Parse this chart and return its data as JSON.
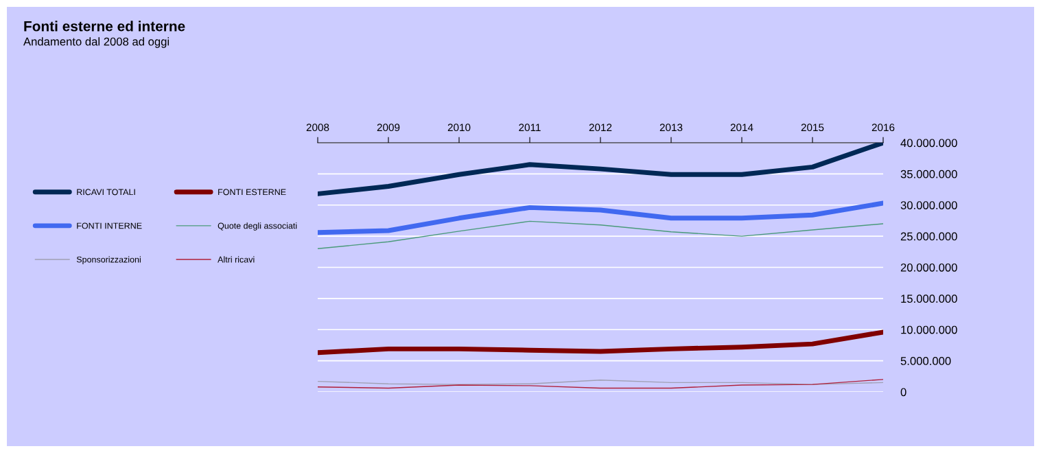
{
  "chart_data": {
    "type": "line",
    "title": "Fonti esterne ed interne",
    "subtitle": "Andamento dal 2008 ad oggi",
    "categories": [
      "2008",
      "2009",
      "2010",
      "2011",
      "2012",
      "2013",
      "2014",
      "2015",
      "2016"
    ],
    "series": [
      {
        "name": "RICAVI TOTALI",
        "color": "#002855",
        "values": [
          31800000,
          33000000,
          34900000,
          36500000,
          35800000,
          34900000,
          34900000,
          36100000,
          40000000
        ]
      },
      {
        "name": "FONTI ESTERNE",
        "color": "#800000",
        "values": [
          6300000,
          6900000,
          6900000,
          6700000,
          6500000,
          6900000,
          7200000,
          7700000,
          9600000
        ]
      },
      {
        "name": "FONTI INTERNE",
        "color": "#4169f0",
        "values": [
          25600000,
          25900000,
          27900000,
          29600000,
          29200000,
          27900000,
          27900000,
          28400000,
          30300000
        ]
      },
      {
        "name": "Quote degli associati",
        "color": "#4a9a7a",
        "values": [
          23000000,
          24100000,
          25800000,
          27400000,
          26800000,
          25700000,
          25000000,
          26000000,
          27000000
        ]
      },
      {
        "name": "Sponsorizzazioni",
        "color": "#a0a0b4",
        "values": [
          1700000,
          1300000,
          1200000,
          1300000,
          1900000,
          1500000,
          1500000,
          1200000,
          1500000
        ]
      },
      {
        "name": "Altri ricavi",
        "color": "#b0203a",
        "values": [
          800000,
          600000,
          1100000,
          1000000,
          600000,
          600000,
          1100000,
          1200000,
          2000000
        ]
      }
    ],
    "ylim": [
      0,
      40000000
    ],
    "yticks": [
      {
        "value": 0,
        "label": "0"
      },
      {
        "value": 5000000,
        "label": "5.000.000"
      },
      {
        "value": 10000000,
        "label": "10.000.000"
      },
      {
        "value": 15000000,
        "label": "15.000.000"
      },
      {
        "value": 20000000,
        "label": "20.000.000"
      },
      {
        "value": 25000000,
        "label": "25.000.000"
      },
      {
        "value": 30000000,
        "label": "30.000.000"
      },
      {
        "value": 35000000,
        "label": "35.000.000"
      },
      {
        "value": 40000000,
        "label": "40.000.000"
      }
    ],
    "grid": "y",
    "legend": "left",
    "marker": "none",
    "line_style": "solid"
  }
}
